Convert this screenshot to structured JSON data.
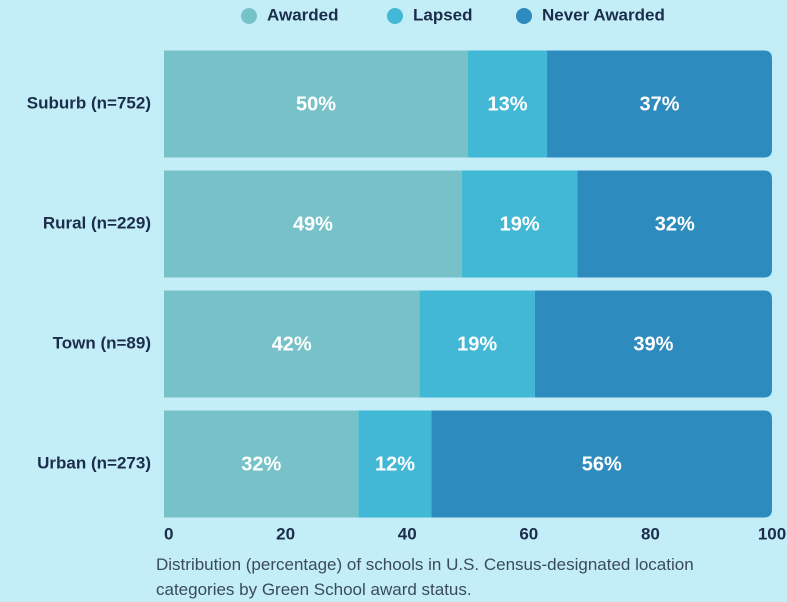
{
  "chart_data": {
    "type": "stacked-bar-horizontal",
    "categories": [
      "Suburb (n=752)",
      "Rural (n=229)",
      "Town (n=89)",
      "Urban (n=273)"
    ],
    "series": [
      {
        "name": "Awarded",
        "color": "#76c2c8",
        "values": [
          50,
          49,
          42,
          32
        ],
        "value_labels": [
          "50%",
          "49%",
          "42%",
          "32%"
        ]
      },
      {
        "name": "Lapsed",
        "color": "#42b8d6",
        "values": [
          13,
          19,
          19,
          12
        ],
        "value_labels": [
          "13%",
          "19%",
          "19%",
          "12%"
        ]
      },
      {
        "name": "Never Awarded",
        "color": "#2e8bbd",
        "values": [
          37,
          32,
          39,
          56
        ],
        "value_labels": [
          "37%",
          "32%",
          "39%",
          "56%"
        ]
      }
    ],
    "xlim": [
      0,
      100
    ],
    "xticks": [
      0,
      20,
      40,
      60,
      80,
      100
    ],
    "caption": "Distribution (percentage) of schools in U.S. Census-designated location categories by Green School award status."
  }
}
